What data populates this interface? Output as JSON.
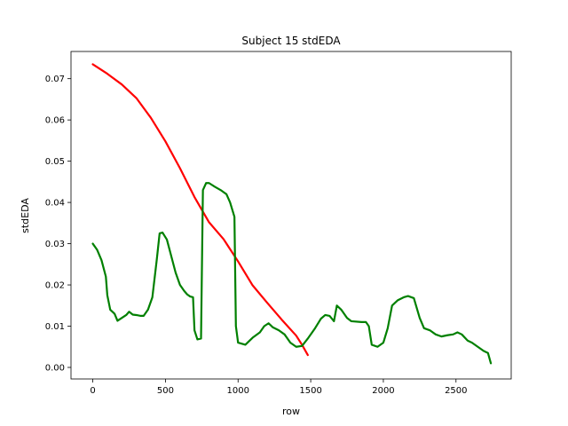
{
  "chart_data": {
    "type": "line",
    "title": "Subject 15 stdEDA",
    "xlabel": "row",
    "ylabel": "stdEDA",
    "xlim": [
      -150,
      2880
    ],
    "ylim": [
      -0.0028,
      0.0766
    ],
    "xticks": [
      0,
      500,
      1000,
      1500,
      2000,
      2500
    ],
    "yticks": [
      0.0,
      0.01,
      0.02,
      0.03,
      0.04,
      0.05,
      0.06,
      0.07
    ],
    "ytick_labels": [
      "0.00",
      "0.01",
      "0.02",
      "0.03",
      "0.04",
      "0.05",
      "0.06",
      "0.07"
    ],
    "grid": false,
    "legend": "none",
    "series": [
      {
        "color": "#ff0000",
        "points": [
          [
            0,
            0.0735
          ],
          [
            100,
            0.0712
          ],
          [
            200,
            0.0686
          ],
          [
            300,
            0.0653
          ],
          [
            400,
            0.0605
          ],
          [
            500,
            0.0548
          ],
          [
            600,
            0.0483
          ],
          [
            700,
            0.0413
          ],
          [
            800,
            0.0352
          ],
          [
            900,
            0.0311
          ],
          [
            1000,
            0.0257
          ],
          [
            1100,
            0.0199
          ],
          [
            1200,
            0.0157
          ],
          [
            1300,
            0.0116
          ],
          [
            1400,
            0.0077
          ],
          [
            1440,
            0.0055
          ],
          [
            1480,
            0.003
          ]
        ]
      },
      {
        "color": "#008000",
        "points": [
          [
            0,
            0.03
          ],
          [
            30,
            0.0285
          ],
          [
            60,
            0.026
          ],
          [
            90,
            0.022
          ],
          [
            100,
            0.0175
          ],
          [
            120,
            0.014
          ],
          [
            150,
            0.013
          ],
          [
            170,
            0.0113
          ],
          [
            200,
            0.012
          ],
          [
            230,
            0.0127
          ],
          [
            250,
            0.0135
          ],
          [
            275,
            0.0128
          ],
          [
            300,
            0.0127
          ],
          [
            330,
            0.0125
          ],
          [
            350,
            0.0125
          ],
          [
            380,
            0.014
          ],
          [
            410,
            0.017
          ],
          [
            440,
            0.026
          ],
          [
            460,
            0.0325
          ],
          [
            480,
            0.0327
          ],
          [
            510,
            0.031
          ],
          [
            540,
            0.027
          ],
          [
            570,
            0.023
          ],
          [
            600,
            0.02
          ],
          [
            630,
            0.0185
          ],
          [
            650,
            0.0177
          ],
          [
            670,
            0.0172
          ],
          [
            690,
            0.017
          ],
          [
            700,
            0.009
          ],
          [
            720,
            0.0068
          ],
          [
            745,
            0.007
          ],
          [
            758,
            0.043
          ],
          [
            780,
            0.0447
          ],
          [
            800,
            0.0447
          ],
          [
            840,
            0.0438
          ],
          [
            880,
            0.043
          ],
          [
            920,
            0.042
          ],
          [
            945,
            0.04
          ],
          [
            975,
            0.0365
          ],
          [
            985,
            0.01
          ],
          [
            1000,
            0.006
          ],
          [
            1050,
            0.0055
          ],
          [
            1100,
            0.0072
          ],
          [
            1150,
            0.0085
          ],
          [
            1180,
            0.01
          ],
          [
            1210,
            0.0107
          ],
          [
            1240,
            0.0097
          ],
          [
            1280,
            0.009
          ],
          [
            1320,
            0.008
          ],
          [
            1360,
            0.006
          ],
          [
            1400,
            0.005
          ],
          [
            1440,
            0.0052
          ],
          [
            1480,
            0.007
          ],
          [
            1530,
            0.0095
          ],
          [
            1570,
            0.0118
          ],
          [
            1600,
            0.0127
          ],
          [
            1630,
            0.0125
          ],
          [
            1660,
            0.0112
          ],
          [
            1680,
            0.015
          ],
          [
            1710,
            0.014
          ],
          [
            1750,
            0.012
          ],
          [
            1780,
            0.0112
          ],
          [
            1850,
            0.011
          ],
          [
            1880,
            0.011
          ],
          [
            1900,
            0.01
          ],
          [
            1920,
            0.0055
          ],
          [
            1960,
            0.005
          ],
          [
            2000,
            0.006
          ],
          [
            2030,
            0.0095
          ],
          [
            2060,
            0.015
          ],
          [
            2100,
            0.0163
          ],
          [
            2140,
            0.017
          ],
          [
            2170,
            0.0173
          ],
          [
            2210,
            0.0168
          ],
          [
            2250,
            0.012
          ],
          [
            2280,
            0.0095
          ],
          [
            2320,
            0.009
          ],
          [
            2360,
            0.008
          ],
          [
            2400,
            0.0075
          ],
          [
            2440,
            0.0078
          ],
          [
            2480,
            0.008
          ],
          [
            2510,
            0.0085
          ],
          [
            2540,
            0.008
          ],
          [
            2580,
            0.0065
          ],
          [
            2610,
            0.006
          ],
          [
            2650,
            0.005
          ],
          [
            2690,
            0.004
          ],
          [
            2720,
            0.0035
          ],
          [
            2740,
            0.001
          ]
        ]
      }
    ]
  }
}
